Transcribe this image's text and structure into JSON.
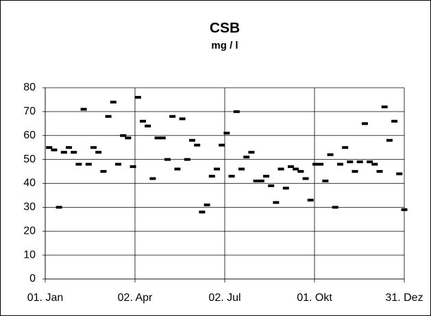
{
  "chart_data": {
    "type": "scatter",
    "title": "CSB",
    "subtitle": "mg / l",
    "x": [
      5,
      10,
      15,
      20,
      25,
      30,
      35,
      40,
      45,
      50,
      55,
      60,
      65,
      70,
      75,
      80,
      85,
      90,
      95,
      100,
      105,
      110,
      115,
      120,
      125,
      130,
      135,
      140,
      145,
      150,
      155,
      160,
      165,
      170,
      175,
      180,
      185,
      190,
      195,
      200,
      205,
      210,
      215,
      220,
      225,
      230,
      235,
      240,
      245,
      250,
      255,
      260,
      265,
      270,
      275,
      280,
      285,
      290,
      295,
      300,
      305,
      310,
      315,
      320,
      325,
      330,
      335,
      340,
      345,
      350,
      355,
      360,
      365
    ],
    "values": [
      55,
      54,
      30,
      53,
      55,
      53,
      48,
      71,
      48,
      55,
      53,
      45,
      68,
      74,
      48,
      60,
      59,
      47,
      76,
      66,
      64,
      42,
      59,
      59,
      50,
      68,
      46,
      67,
      50,
      58,
      56,
      28,
      31,
      43,
      46,
      56,
      61,
      43,
      70,
      46,
      51,
      53,
      41,
      41,
      43,
      39,
      32,
      46,
      38,
      47,
      46,
      45,
      42,
      33,
      48,
      48,
      41,
      52,
      30,
      48,
      55,
      49,
      45,
      49,
      65,
      49,
      48,
      45,
      72,
      58,
      66,
      44,
      29
    ],
    "color": "#000000",
    "xlim": [
      1,
      365
    ],
    "xticks": [
      {
        "value": 1,
        "label": "01. Jan"
      },
      {
        "value": 92,
        "label": "02. Apr"
      },
      {
        "value": 183,
        "label": "02. Jul"
      },
      {
        "value": 274,
        "label": "01. Okt"
      },
      {
        "value": 365,
        "label": "31. Dez"
      }
    ],
    "ylim": [
      0,
      80
    ],
    "yticks": [
      0,
      10,
      20,
      30,
      40,
      50,
      60,
      70,
      80
    ],
    "grid": true
  }
}
